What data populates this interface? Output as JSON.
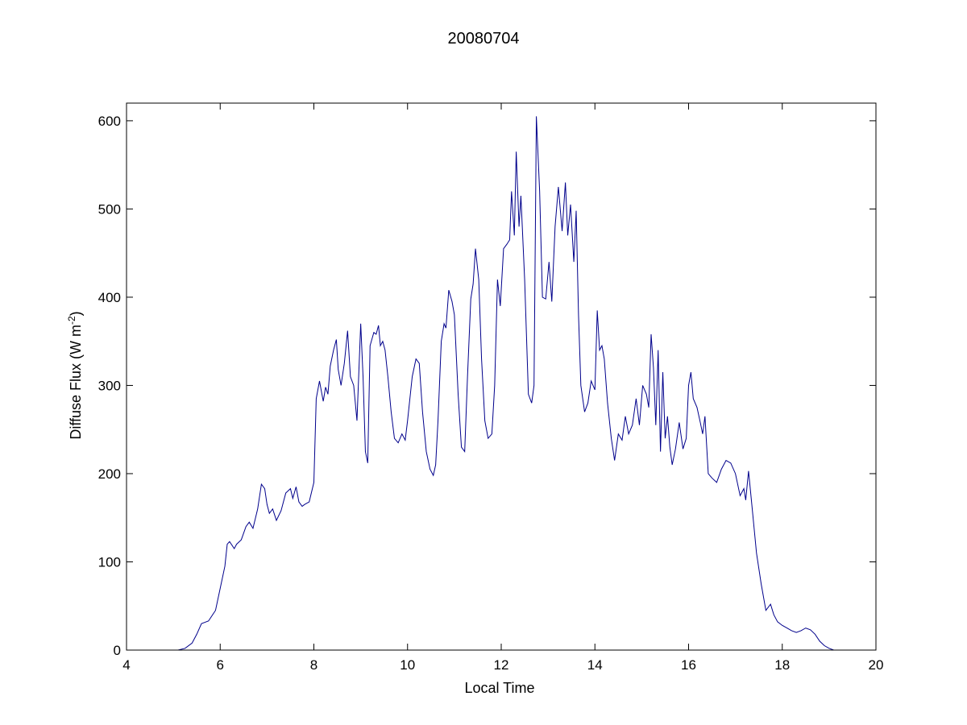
{
  "chart_data": {
    "type": "line",
    "title": "20080704",
    "xlabel": "Local Time",
    "ylabel_main": "Diffuse Flux (W m",
    "ylabel_sup": "-2",
    "ylabel_tail": ")",
    "xlim": [
      4,
      20
    ],
    "ylim": [
      0,
      620
    ],
    "xticks": [
      "4",
      "6",
      "8",
      "10",
      "12",
      "14",
      "16",
      "18",
      "20"
    ],
    "yticks": [
      "0",
      "100",
      "200",
      "300",
      "400",
      "500",
      "600"
    ],
    "grid": false,
    "line_color": "#00008b",
    "series": [
      {
        "x": [
          5.1,
          5.25,
          5.4,
          5.5,
          5.6,
          5.75,
          5.9,
          6.0,
          6.1,
          6.15,
          6.2,
          6.3,
          6.35,
          6.45,
          6.55,
          6.62,
          6.7,
          6.8,
          6.88,
          6.95,
          7.0,
          7.05,
          7.12,
          7.2,
          7.3,
          7.4,
          7.5,
          7.55,
          7.62,
          7.68,
          7.75,
          7.8,
          7.9,
          8.0,
          8.05,
          8.12,
          8.2,
          8.25,
          8.3,
          8.35,
          8.42,
          8.48,
          8.52,
          8.58,
          8.65,
          8.72,
          8.78,
          8.85,
          8.92,
          9.0,
          9.05,
          9.1,
          9.15,
          9.2,
          9.28,
          9.33,
          9.38,
          9.42,
          9.47,
          9.52,
          9.58,
          9.65,
          9.72,
          9.8,
          9.88,
          9.95,
          10.0,
          10.1,
          10.18,
          10.25,
          10.32,
          10.4,
          10.48,
          10.55,
          10.6,
          10.65,
          10.72,
          10.78,
          10.82,
          10.88,
          10.95,
          11.0,
          11.08,
          11.15,
          11.22,
          11.28,
          11.35,
          11.4,
          11.45,
          11.52,
          11.58,
          11.65,
          11.72,
          11.8,
          11.86,
          11.92,
          11.98,
          12.05,
          12.12,
          12.18,
          12.22,
          12.28,
          12.32,
          12.38,
          12.42,
          12.5,
          12.58,
          12.65,
          12.7,
          12.75,
          12.82,
          12.88,
          12.95,
          13.02,
          13.08,
          13.15,
          13.22,
          13.3,
          13.37,
          13.42,
          13.48,
          13.55,
          13.6,
          13.65,
          13.7,
          13.78,
          13.85,
          13.92,
          14.0,
          14.05,
          14.1,
          14.15,
          14.2,
          14.27,
          14.35,
          14.42,
          14.5,
          14.58,
          14.65,
          14.72,
          14.8,
          14.88,
          14.95,
          15.02,
          15.1,
          15.15,
          15.2,
          15.25,
          15.3,
          15.35,
          15.4,
          15.45,
          15.5,
          15.55,
          15.6,
          15.65,
          15.72,
          15.8,
          15.88,
          15.95,
          16.0,
          16.05,
          16.1,
          16.18,
          16.25,
          16.3,
          16.35,
          16.42,
          16.5,
          16.6,
          16.7,
          16.8,
          16.9,
          17.0,
          17.1,
          17.18,
          17.22,
          17.28,
          17.35,
          17.45,
          17.55,
          17.65,
          17.75,
          17.82,
          17.9,
          18.0,
          18.1,
          18.2,
          18.3,
          18.4,
          18.5,
          18.6,
          18.7,
          18.8,
          18.9,
          19.0,
          19.1,
          19.2,
          19.3,
          19.4
        ],
        "y": [
          0,
          2,
          8,
          18,
          30,
          33,
          45,
          70,
          95,
          120,
          123,
          115,
          120,
          125,
          140,
          145,
          138,
          160,
          188,
          183,
          165,
          155,
          160,
          147,
          158,
          178,
          183,
          172,
          185,
          168,
          163,
          165,
          168,
          190,
          285,
          305,
          282,
          298,
          290,
          322,
          340,
          352,
          318,
          300,
          325,
          362,
          310,
          300,
          260,
          370,
          310,
          225,
          212,
          345,
          360,
          358,
          368,
          345,
          350,
          340,
          310,
          270,
          240,
          235,
          245,
          238,
          260,
          310,
          330,
          325,
          270,
          225,
          205,
          198,
          210,
          260,
          350,
          370,
          365,
          408,
          395,
          380,
          290,
          230,
          225,
          310,
          398,
          415,
          455,
          420,
          330,
          260,
          240,
          245,
          300,
          420,
          390,
          455,
          460,
          465,
          520,
          470,
          565,
          480,
          515,
          420,
          290,
          280,
          300,
          605,
          520,
          400,
          398,
          440,
          395,
          480,
          525,
          475,
          530,
          470,
          505,
          440,
          498,
          380,
          300,
          270,
          280,
          305,
          295,
          385,
          340,
          345,
          330,
          280,
          240,
          215,
          245,
          238,
          265,
          245,
          255,
          285,
          255,
          300,
          290,
          275,
          358,
          320,
          255,
          340,
          225,
          315,
          240,
          265,
          230,
          210,
          228,
          258,
          228,
          240,
          300,
          315,
          285,
          275,
          258,
          245,
          265,
          200,
          195,
          190,
          205,
          215,
          212,
          200,
          175,
          183,
          170,
          203,
          165,
          110,
          75,
          45,
          52,
          40,
          32,
          28,
          25,
          22,
          20,
          22,
          25,
          23,
          18,
          10,
          5,
          2,
          0,
          0,
          0,
          0
        ]
      }
    ]
  }
}
